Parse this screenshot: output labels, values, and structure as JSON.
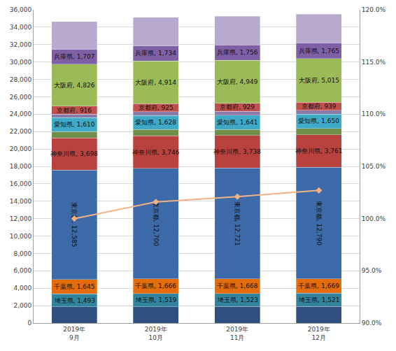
{
  "chart_data": {
    "type": "bar",
    "stacked": true,
    "grid": true,
    "data_labels": true,
    "categories": [
      "2019年\n9月",
      "2019年\n10月",
      "2019年\n11月",
      "2019年\n12月"
    ],
    "ylim": [
      0,
      36000
    ],
    "yticks": [
      0,
      {
        "value": 2000,
        "label": "2,000"
      },
      {
        "value": 4000,
        "label": "4,000"
      },
      {
        "value": 6000,
        "label": "6,000"
      },
      {
        "value": 8000,
        "label": "8,000"
      },
      {
        "value": 10000,
        "label": "10,000"
      },
      {
        "value": 12000,
        "label": "12,000"
      },
      {
        "value": 14000,
        "label": "14,000"
      },
      {
        "value": 16000,
        "label": "16,000"
      },
      {
        "value": 18000,
        "label": "18,000"
      },
      {
        "value": 20000,
        "label": "20,000"
      },
      {
        "value": 22000,
        "label": "22,000"
      },
      {
        "value": 24000,
        "label": "24,000"
      },
      {
        "value": 26000,
        "label": "26,000"
      },
      {
        "value": 28000,
        "label": "28,000"
      },
      {
        "value": 30000,
        "label": "30,000"
      },
      {
        "value": 32000,
        "label": "32,000"
      },
      {
        "value": 34000,
        "label": "34,000"
      },
      {
        "value": 36000,
        "label": "36,000"
      }
    ],
    "y2lim": [
      90,
      120
    ],
    "y2ticks": [
      {
        "value": 90,
        "label": "90.0%"
      },
      {
        "value": 95,
        "label": "95.0%"
      },
      {
        "value": 100,
        "label": "100.0%"
      },
      {
        "value": 105,
        "label": "105.0%"
      },
      {
        "value": 110,
        "label": "110.0%"
      },
      {
        "value": 115,
        "label": "115.0%"
      },
      {
        "value": 120,
        "label": "120.0%"
      }
    ],
    "series": [
      {
        "color": "#2f4f7f",
        "values": [
          1860,
          1880,
          1890,
          1900
        ]
      },
      {
        "name": "埼玉県",
        "color": "#31839e",
        "values": [
          1493,
          1519,
          1523,
          1521
        ],
        "value_labels": [
          "埼玉県, 1,493",
          "埼玉県, 1,519",
          "埼玉県, 1,523",
          "埼玉県, 1,521"
        ]
      },
      {
        "name": "千葉県",
        "color": "#e46c0a",
        "values": [
          1645,
          1666,
          1668,
          1669
        ],
        "value_labels": [
          "千葉県, 1,645",
          "千葉県, 1,666",
          "千葉県, 1,668",
          "千葉県, 1,669"
        ]
      },
      {
        "name": "東京都",
        "color": "#3d6aa8",
        "values": [
          12585,
          12700,
          12721,
          12790
        ],
        "value_labels": [
          "東京都, 12,585",
          "東京都, 12,700",
          "東京都, 12,721",
          "東京都, 12,790"
        ]
      },
      {
        "name": "神奈川県",
        "color": "#b9423e",
        "values": [
          3698,
          3746,
          3738,
          3761
        ],
        "value_labels": [
          "神奈川県, 3,698",
          "神奈川県, 3,746",
          "神奈川県, 3,738",
          "神奈川県, 3,761"
        ]
      },
      {
        "color": "#6f8f4a",
        "values": [
          700,
          710,
          715,
          720
        ]
      },
      {
        "name": "愛知県",
        "color": "#3fa9c8",
        "values": [
          1610,
          1628,
          1641,
          1650
        ],
        "value_labels": [
          "愛知県, 1,610",
          "愛知県, 1,628",
          "愛知県, 1,641",
          "愛知県, 1,650"
        ]
      },
      {
        "color": "#8a7aa8",
        "values": [
          420,
          430,
          435,
          440
        ]
      },
      {
        "name": "京都府",
        "color": "#c0504d",
        "values": [
          916,
          925,
          929,
          939
        ],
        "value_labels": [
          "京都府, 916",
          "京都府, 925",
          "京都府, 929",
          "京都府, 939"
        ]
      },
      {
        "name": "大阪府",
        "color": "#9bbb59",
        "values": [
          4826,
          4914,
          4949,
          5015
        ],
        "value_labels": [
          "大阪府, 4,826",
          "大阪府, 4,914",
          "大阪府, 4,949",
          "大阪府, 5,015"
        ]
      },
      {
        "name": "兵庫県",
        "color": "#7f5fa6",
        "values": [
          1707,
          1734,
          1756,
          1765
        ],
        "value_labels": [
          "兵庫県, 1,707",
          "兵庫県, 1,734",
          "兵庫県, 1,756",
          "兵庫県, 1,765"
        ]
      },
      {
        "color": "#b8a9cf",
        "values": [
          3200,
          3270,
          3300,
          3330
        ]
      },
      {
        "type": "line",
        "axis": "y2",
        "color": "#f4b183",
        "marker": "diamond",
        "values": [
          100.0,
          101.6,
          102.1,
          102.7
        ]
      }
    ]
  }
}
